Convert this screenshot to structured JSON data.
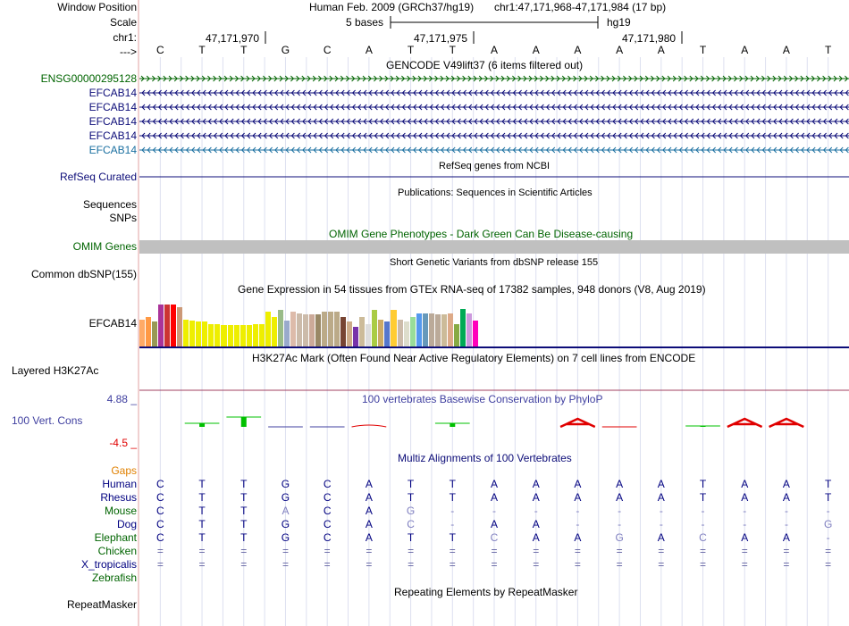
{
  "header": {
    "window_position_label": "Window Position",
    "scale_label": "Scale",
    "chrom_label": "chr1:",
    "strand_label": "--->",
    "assembly": "Human Feb. 2009 (GRCh37/hg19)",
    "position": "chr1:47,171,968-47,171,984 (17 bp)",
    "scale_text": "5 bases",
    "db": "hg19",
    "ticks": [
      "47,171,970",
      "47,171,975",
      "47,171,980"
    ]
  },
  "sequence": [
    "C",
    "T",
    "T",
    "G",
    "C",
    "A",
    "T",
    "T",
    "A",
    "A",
    "A",
    "A",
    "A",
    "T",
    "A",
    "A",
    "T"
  ],
  "gencode": {
    "title": "GENCODE V49lift37 (6 items filtered out)",
    "items": [
      {
        "name": "ENSG00000295128",
        "color": "#006400",
        "strand": "+"
      },
      {
        "name": "EFCAB14",
        "color": "#0c0c78",
        "strand": "-"
      },
      {
        "name": "EFCAB14",
        "color": "#0c0c78",
        "strand": "-"
      },
      {
        "name": "EFCAB14",
        "color": "#0c0c78",
        "strand": "-"
      },
      {
        "name": "EFCAB14",
        "color": "#0c0c78",
        "strand": "-"
      },
      {
        "name": "EFCAB14",
        "color": "#1a6fa0",
        "strand": "-"
      }
    ]
  },
  "refseq": {
    "title": "RefSeq genes from NCBI",
    "label": "RefSeq Curated"
  },
  "publications": {
    "title": "Publications: Sequences in Scientific Articles",
    "label": "Sequences"
  },
  "snps": {
    "label": "SNPs"
  },
  "omim": {
    "title": "OMIM Gene Phenotypes - Dark Green Can Be Disease-causing",
    "label": "OMIM Genes"
  },
  "dbsnp": {
    "title": "Short Genetic Variants from dbSNP release 155",
    "label": "Common dbSNP(155)"
  },
  "gtex": {
    "title": "Gene Expression in 54 tissues from GTEx RNA-seq of 17382 samples, 948 donors (V8, Aug 2019)",
    "label": "EFCAB14",
    "bars": [
      {
        "v": 0.55,
        "c": "#ffaa66"
      },
      {
        "v": 0.6,
        "c": "#ff9944"
      },
      {
        "v": 0.5,
        "c": "#999955"
      },
      {
        "v": 0.85,
        "c": "#aa3399"
      },
      {
        "v": 0.85,
        "c": "#cc3333"
      },
      {
        "v": 0.85,
        "c": "#ff0000"
      },
      {
        "v": 0.8,
        "c": "#cc9977"
      },
      {
        "v": 0.55,
        "c": "#eeee00"
      },
      {
        "v": 0.52,
        "c": "#eeee00"
      },
      {
        "v": 0.5,
        "c": "#eeee00"
      },
      {
        "v": 0.5,
        "c": "#eeee00"
      },
      {
        "v": 0.46,
        "c": "#eeee00"
      },
      {
        "v": 0.46,
        "c": "#eeee00"
      },
      {
        "v": 0.44,
        "c": "#eeee00"
      },
      {
        "v": 0.44,
        "c": "#eeee00"
      },
      {
        "v": 0.44,
        "c": "#eeee00"
      },
      {
        "v": 0.44,
        "c": "#eeee00"
      },
      {
        "v": 0.44,
        "c": "#eeee00"
      },
      {
        "v": 0.46,
        "c": "#eeee00"
      },
      {
        "v": 0.46,
        "c": "#eeee00"
      },
      {
        "v": 0.7,
        "c": "#eeee00"
      },
      {
        "v": 0.6,
        "c": "#eeee00"
      },
      {
        "v": 0.75,
        "c": "#99bb88"
      },
      {
        "v": 0.52,
        "c": "#99aacc"
      },
      {
        "v": 0.7,
        "c": "#ddbbaa"
      },
      {
        "v": 0.68,
        "c": "#ccbbaa"
      },
      {
        "v": 0.66,
        "c": "#ccbbaa"
      },
      {
        "v": 0.66,
        "c": "#ccaa99"
      },
      {
        "v": 0.66,
        "c": "#998866"
      },
      {
        "v": 0.7,
        "c": "#bbaa88"
      },
      {
        "v": 0.7,
        "c": "#bbaa88"
      },
      {
        "v": 0.7,
        "c": "#bbaa88"
      },
      {
        "v": 0.6,
        "c": "#774433"
      },
      {
        "v": 0.5,
        "c": "#ccaa88"
      },
      {
        "v": 0.4,
        "c": "#7733aa"
      },
      {
        "v": 0.6,
        "c": "#ccbb99"
      },
      {
        "v": 0.45,
        "c": "#dddddd"
      },
      {
        "v": 0.75,
        "c": "#aacc44"
      },
      {
        "v": 0.55,
        "c": "#ccaa66"
      },
      {
        "v": 0.5,
        "c": "#5577cc"
      },
      {
        "v": 0.75,
        "c": "#ffcc33"
      },
      {
        "v": 0.55,
        "c": "#ccbbaa"
      },
      {
        "v": 0.5,
        "c": "#ddddcc"
      },
      {
        "v": 0.6,
        "c": "#99dd99"
      },
      {
        "v": 0.68,
        "c": "#5599ee"
      },
      {
        "v": 0.68,
        "c": "#6699bb"
      },
      {
        "v": 0.68,
        "c": "#bbaa99"
      },
      {
        "v": 0.66,
        "c": "#bbaa99"
      },
      {
        "v": 0.66,
        "c": "#ccbb99"
      },
      {
        "v": 0.68,
        "c": "#ddaa88"
      },
      {
        "v": 0.46,
        "c": "#88aa44"
      },
      {
        "v": 0.76,
        "c": "#00aa55"
      },
      {
        "v": 0.68,
        "c": "#cc99dd"
      },
      {
        "v": 0.52,
        "c": "#ff00bb"
      }
    ]
  },
  "h3k27ac": {
    "title": "H3K27Ac Mark (Often Found Near Active Regulatory Elements) on 7 cell lines from ENCODE",
    "label": "Layered H3K27Ac"
  },
  "phylop": {
    "title": "100 vertebrates Basewise Conservation by PhyloP",
    "label": "100 Vert. Cons",
    "ymax": "4.88 _",
    "ymin": "-4.5 _"
  },
  "multiz": {
    "title": "Multiz Alignments of 100 Vertebrates",
    "gaps_label": "Gaps",
    "species": [
      {
        "name": "Human",
        "color": "#000080",
        "bases": [
          "C",
          "T",
          "T",
          "G",
          "C",
          "A",
          "T",
          "T",
          "A",
          "A",
          "A",
          "A",
          "A",
          "T",
          "A",
          "A",
          "T"
        ]
      },
      {
        "name": "Rhesus",
        "color": "#000080",
        "bases": [
          "C",
          "T",
          "T",
          "G",
          "C",
          "A",
          "T",
          "T",
          "A",
          "A",
          "A",
          "A",
          "A",
          "T",
          "A",
          "A",
          "T"
        ]
      },
      {
        "name": "Mouse",
        "color": "#006400",
        "bases": [
          "C",
          "T",
          "T",
          "A",
          "C",
          "A",
          "G",
          "-",
          "-",
          "-",
          "-",
          "-",
          "-",
          "-",
          "-",
          "-",
          "-"
        ]
      },
      {
        "name": "Dog",
        "color": "#000080",
        "bases": [
          "C",
          "T",
          "T",
          "G",
          "C",
          "A",
          "C",
          "-",
          "A",
          "A",
          "-",
          "-",
          "-",
          "-",
          "-",
          "-",
          "G"
        ]
      },
      {
        "name": "Elephant",
        "color": "#006400",
        "bases": [
          "C",
          "T",
          "T",
          "G",
          "C",
          "A",
          "T",
          "T",
          "C",
          "A",
          "A",
          "G",
          "A",
          "C",
          "A",
          "A",
          "-"
        ]
      },
      {
        "name": "Chicken",
        "color": "#006400",
        "bases": [
          "=",
          "=",
          "=",
          "=",
          "=",
          "=",
          "=",
          "=",
          "=",
          "=",
          "=",
          "=",
          "=",
          "=",
          "=",
          "=",
          "="
        ]
      },
      {
        "name": "X_tropicalis",
        "color": "#000080",
        "bases": [
          "=",
          "=",
          "=",
          "=",
          "=",
          "=",
          "=",
          "=",
          "=",
          "=",
          "=",
          "=",
          "=",
          "=",
          "=",
          "=",
          "="
        ]
      },
      {
        "name": "Zebrafish",
        "color": "#006400",
        "bases": [
          "",
          "",
          "",
          "",
          "",
          "",
          "",
          "",
          "",
          "",
          "",
          "",
          "",
          "",
          "",
          "",
          ""
        ]
      }
    ]
  },
  "repeatmasker": {
    "title": "Repeating Elements by RepeatMasker",
    "label": "RepeatMasker"
  },
  "colors": {
    "gencode_green": "#006400",
    "navy": "#0c0c78",
    "omim_gray": "#c0c0c0",
    "phylop_blue": "#4040a0",
    "phylop_red": "#e00000",
    "phylop_green": "#00c000",
    "orange": "#e08000"
  }
}
